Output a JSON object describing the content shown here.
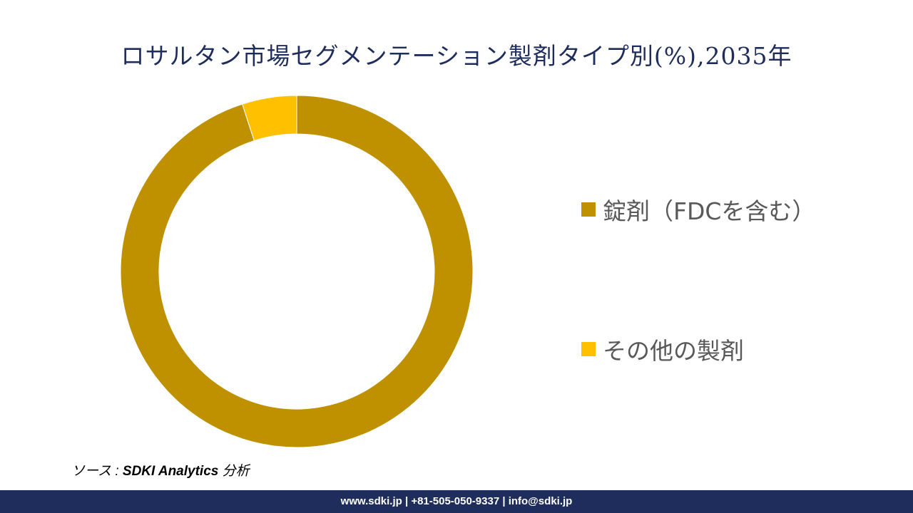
{
  "chart_data": {
    "type": "pie",
    "title": "ロサルタン市場セグメンテーション製剤タイプ別(%),2035年",
    "categories": [
      "錠剤（FDCを含む）",
      "その他の製剤"
    ],
    "values": [
      95,
      5
    ],
    "colors": [
      "#bf9000",
      "#ffc000"
    ],
    "donut": true,
    "legend_position": "right"
  },
  "source": {
    "prefix": "ソース : ",
    "brand": "SDKI Analytics",
    "suffix": " 分析"
  },
  "footer": {
    "contact": "www.sdki.jp | +81-505-050-9337 | info@sdki.jp"
  }
}
